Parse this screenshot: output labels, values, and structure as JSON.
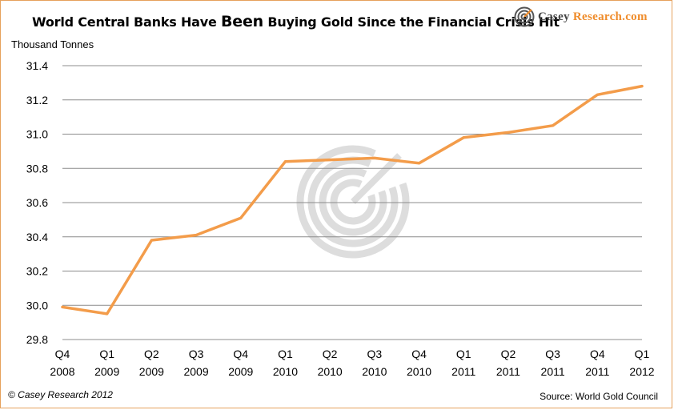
{
  "title_prefix": "World Central Banks Have ",
  "title_emphasis": "Been",
  "title_suffix": " Buying Gold Since the Financial Crisis Hit",
  "logo": {
    "main": "Casey ",
    "accent": "Research",
    "suffix": ".com"
  },
  "copyright": "© Casey Research 2012",
  "source": "Source: World Gold Council",
  "colors": {
    "line": "#f39c4a",
    "grid": "#8c8c8c",
    "border": "#e6a15c",
    "watermark": "#cfcfcf"
  },
  "chart_data": {
    "type": "line",
    "title": "World Central Banks Have Been Buying Gold Since the Financial Crisis Hit",
    "ylabel": "Thousand Tonnes",
    "xlabel": "",
    "categories": [
      [
        "Q4",
        "2008"
      ],
      [
        "Q1",
        "2009"
      ],
      [
        "Q2",
        "2009"
      ],
      [
        "Q3",
        "2009"
      ],
      [
        "Q4",
        "2009"
      ],
      [
        "Q1",
        "2010"
      ],
      [
        "Q2",
        "2010"
      ],
      [
        "Q3",
        "2010"
      ],
      [
        "Q4",
        "2010"
      ],
      [
        "Q1",
        "2011"
      ],
      [
        "Q2",
        "2011"
      ],
      [
        "Q3",
        "2011"
      ],
      [
        "Q4",
        "2011"
      ],
      [
        "Q1",
        "2012"
      ]
    ],
    "series": [
      {
        "values": [
          29.99,
          29.95,
          30.38,
          30.41,
          30.51,
          30.84,
          30.85,
          30.86,
          30.83,
          30.98,
          31.01,
          31.05,
          31.23,
          31.28
        ]
      }
    ],
    "ylim": [
      29.8,
      31.4
    ],
    "yticks": [
      "29.8",
      "30.0",
      "30.2",
      "30.4",
      "30.6",
      "30.8",
      "31.0",
      "31.2",
      "31.4"
    ],
    "grid": true,
    "legend": "none"
  }
}
